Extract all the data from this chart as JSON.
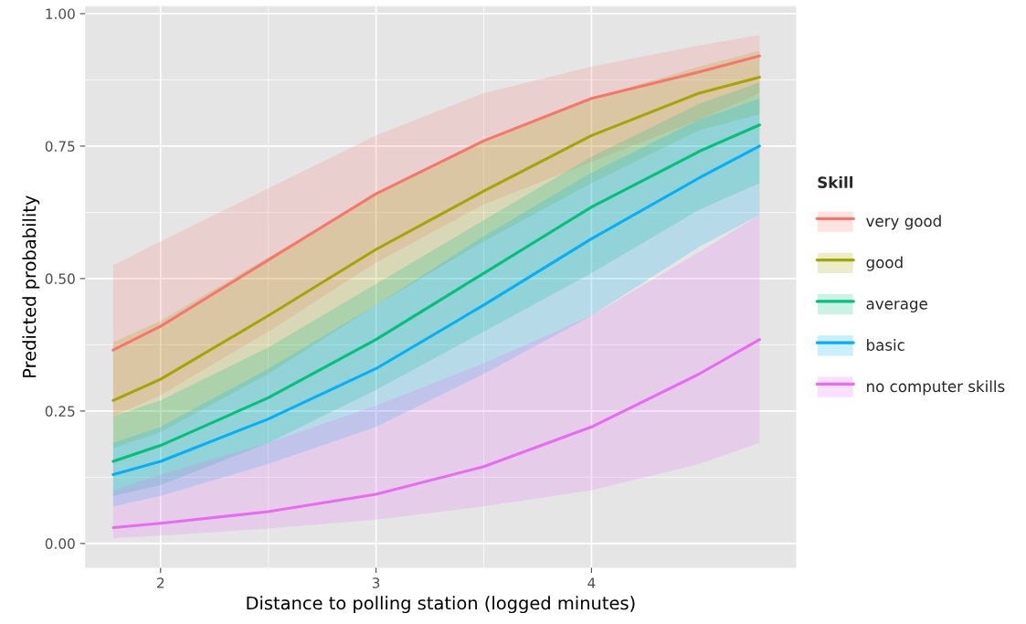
{
  "chart_data": {
    "type": "line",
    "xlabel": "Distance to polling station (logged minutes)",
    "ylabel": "Predicted probability",
    "legend_title": "Skill",
    "legend": "right",
    "grid": true,
    "marker": "none",
    "line_style": "solid",
    "x": [
      1.78,
      2,
      2.5,
      3,
      3.5,
      4,
      4.5,
      4.78
    ],
    "xlim": [
      1.65,
      4.95
    ],
    "xticks": [
      2,
      3,
      4
    ],
    "ylim": [
      -0.046,
      1.014
    ],
    "yticks": [
      {
        "value": 0,
        "label": "0.00"
      },
      {
        "value": 0.25,
        "label": "0.25"
      },
      {
        "value": 0.5,
        "label": "0.50"
      },
      {
        "value": 0.75,
        "label": "0.75"
      },
      {
        "value": 1,
        "label": "1.00"
      }
    ],
    "series": [
      {
        "name": "very good",
        "color": "#f8766d",
        "values": [
          0.365,
          0.41,
          0.535,
          0.66,
          0.76,
          0.84,
          0.89,
          0.92
        ],
        "lower": [
          0.24,
          0.28,
          0.4,
          0.53,
          0.64,
          0.72,
          0.8,
          0.85
        ],
        "upper": [
          0.525,
          0.57,
          0.67,
          0.77,
          0.85,
          0.9,
          0.94,
          0.96
        ]
      },
      {
        "name": "good",
        "color": "#a3a500",
        "values": [
          0.27,
          0.31,
          0.43,
          0.555,
          0.665,
          0.77,
          0.85,
          0.88
        ],
        "lower": [
          0.18,
          0.21,
          0.32,
          0.45,
          0.57,
          0.68,
          0.78,
          0.81
        ],
        "upper": [
          0.38,
          0.42,
          0.54,
          0.66,
          0.76,
          0.84,
          0.9,
          0.93
        ]
      },
      {
        "name": "average",
        "color": "#00bf7d",
        "values": [
          0.155,
          0.185,
          0.275,
          0.385,
          0.51,
          0.635,
          0.74,
          0.79
        ],
        "lower": [
          0.09,
          0.11,
          0.19,
          0.29,
          0.4,
          0.51,
          0.63,
          0.68
        ],
        "upper": [
          0.24,
          0.27,
          0.37,
          0.49,
          0.61,
          0.73,
          0.83,
          0.87
        ]
      },
      {
        "name": "basic",
        "color": "#00b0f6",
        "values": [
          0.13,
          0.155,
          0.235,
          0.33,
          0.45,
          0.575,
          0.69,
          0.75
        ],
        "lower": [
          0.07,
          0.09,
          0.15,
          0.22,
          0.32,
          0.43,
          0.56,
          0.62
        ],
        "upper": [
          0.19,
          0.22,
          0.33,
          0.45,
          0.58,
          0.7,
          0.8,
          0.84
        ]
      },
      {
        "name": "no computer skills",
        "color": "#e76bf3",
        "values": [
          0.03,
          0.038,
          0.06,
          0.093,
          0.145,
          0.22,
          0.32,
          0.385
        ],
        "lower": [
          0.01,
          0.015,
          0.028,
          0.045,
          0.07,
          0.1,
          0.15,
          0.19
        ],
        "upper": [
          0.1,
          0.13,
          0.19,
          0.26,
          0.34,
          0.43,
          0.55,
          0.62
        ]
      }
    ]
  }
}
